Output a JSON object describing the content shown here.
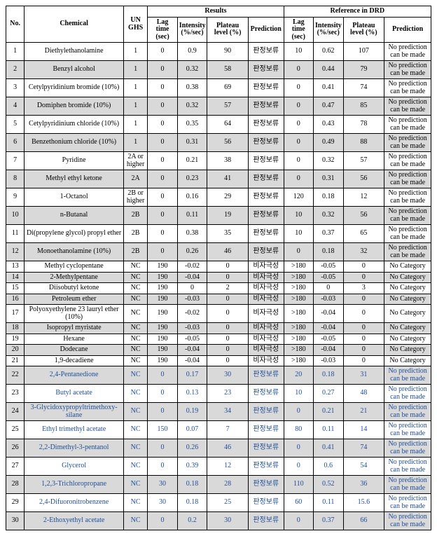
{
  "colors": {
    "shaded_row_bg": "#d9d9d9",
    "highlight_text": "#1f4e99",
    "border": "#000000",
    "bg": "#ffffff"
  },
  "typography": {
    "family": "Times New Roman",
    "base_size_pt": 10
  },
  "headers": {
    "no": "No.",
    "chemical": "Chemical",
    "ghs": "UN GHS",
    "results": "Results",
    "reference": "Reference in DRD",
    "lag": "Lag time (sec)",
    "intensity": "Intensity (%/sec)",
    "plateau": "Plateau level (%)",
    "prediction": "Prediction"
  },
  "rows": [
    {
      "no": 1,
      "chem": "Diethylethanolamine",
      "ghs": "1",
      "r": {
        "lag": "0",
        "int": "0.9",
        "plat": "90",
        "pred": "판정보류"
      },
      "d": {
        "lag": "10",
        "int": "0.62",
        "plat": "107",
        "pred": "No prediction can be made"
      },
      "shade": false,
      "blue": false
    },
    {
      "no": 2,
      "chem": "Benzyl alcohol",
      "ghs": "1",
      "r": {
        "lag": "0",
        "int": "0.32",
        "plat": "58",
        "pred": "판정보류"
      },
      "d": {
        "lag": "0",
        "int": "0.44",
        "plat": "79",
        "pred": "No prediction can be made"
      },
      "shade": true,
      "blue": false
    },
    {
      "no": 3,
      "chem": "Cetylpyridinium bromide (10%)",
      "ghs": "1",
      "r": {
        "lag": "0",
        "int": "0.38",
        "plat": "69",
        "pred": "판정보류"
      },
      "d": {
        "lag": "0",
        "int": "0.41",
        "plat": "74",
        "pred": "No prediction can be made"
      },
      "shade": false,
      "blue": false
    },
    {
      "no": 4,
      "chem": "Domiphen bromide (10%)",
      "ghs": "1",
      "r": {
        "lag": "0",
        "int": "0.32",
        "plat": "57",
        "pred": "판정보류"
      },
      "d": {
        "lag": "0",
        "int": "0.47",
        "plat": "85",
        "pred": "No prediction can be made"
      },
      "shade": true,
      "blue": false
    },
    {
      "no": 5,
      "chem": "Cetylpyridinium chloride (10%)",
      "ghs": "1",
      "r": {
        "lag": "0",
        "int": "0.35",
        "plat": "64",
        "pred": "판정보류"
      },
      "d": {
        "lag": "0",
        "int": "0.43",
        "plat": "78",
        "pred": "No prediction can be made"
      },
      "shade": false,
      "blue": false
    },
    {
      "no": 6,
      "chem": "Benzethonium chloride (10%)",
      "ghs": "1",
      "r": {
        "lag": "0",
        "int": "0.31",
        "plat": "56",
        "pred": "판정보류"
      },
      "d": {
        "lag": "0",
        "int": "0.49",
        "plat": "88",
        "pred": "No prediction can be made"
      },
      "shade": true,
      "blue": false
    },
    {
      "no": 7,
      "chem": "Pyridine",
      "ghs": "2A or higher",
      "r": {
        "lag": "0",
        "int": "0.21",
        "plat": "38",
        "pred": "판정보류"
      },
      "d": {
        "lag": "0",
        "int": "0.32",
        "plat": "57",
        "pred": "No prediction can be made"
      },
      "shade": false,
      "blue": false
    },
    {
      "no": 8,
      "chem": "Methyl ethyl ketone",
      "ghs": "2A",
      "r": {
        "lag": "0",
        "int": "0.23",
        "plat": "41",
        "pred": "판정보류"
      },
      "d": {
        "lag": "0",
        "int": "0.31",
        "plat": "56",
        "pred": "No prediction can be made"
      },
      "shade": true,
      "blue": false
    },
    {
      "no": 9,
      "chem": "1-Octanol",
      "ghs": "2B or higher",
      "r": {
        "lag": "0",
        "int": "0.16",
        "plat": "29",
        "pred": "판정보류"
      },
      "d": {
        "lag": "120",
        "int": "0.18",
        "plat": "12",
        "pred": "No prediction can be made"
      },
      "shade": false,
      "blue": false
    },
    {
      "no": 10,
      "chem": "n-Butanal",
      "ghs": "2B",
      "r": {
        "lag": "0",
        "int": "0.11",
        "plat": "19",
        "pred": "판정보류"
      },
      "d": {
        "lag": "10",
        "int": "0.32",
        "plat": "56",
        "pred": "No prediction can be made"
      },
      "shade": true,
      "blue": false
    },
    {
      "no": 11,
      "chem": "Di(propylene glycol) propyl ether",
      "ghs": "2B",
      "r": {
        "lag": "0",
        "int": "0.38",
        "plat": "35",
        "pred": "판정보류"
      },
      "d": {
        "lag": "10",
        "int": "0.37",
        "plat": "65",
        "pred": "No prediction can be made"
      },
      "shade": false,
      "blue": false
    },
    {
      "no": 12,
      "chem": "Monoethanolamine (10%)",
      "ghs": "2B",
      "r": {
        "lag": "0",
        "int": "0.26",
        "plat": "46",
        "pred": "판정보류"
      },
      "d": {
        "lag": "0",
        "int": "0.18",
        "plat": "32",
        "pred": "No prediction can be made"
      },
      "shade": true,
      "blue": false
    },
    {
      "no": 13,
      "chem": "Methyl cyclopentane",
      "ghs": "NC",
      "r": {
        "lag": "190",
        "int": "-0.02",
        "plat": "0",
        "pred": "비자극성"
      },
      "d": {
        "lag": ">180",
        "int": "-0.05",
        "plat": "0",
        "pred": "No Category"
      },
      "shade": false,
      "blue": false
    },
    {
      "no": 14,
      "chem": "2-Methylpentane",
      "ghs": "NC",
      "r": {
        "lag": "190",
        "int": "-0.04",
        "plat": "0",
        "pred": "비자극성"
      },
      "d": {
        "lag": ">180",
        "int": "-0.05",
        "plat": "0",
        "pred": "No Category"
      },
      "shade": true,
      "blue": false
    },
    {
      "no": 15,
      "chem": "Diisobutyl ketone",
      "ghs": "NC",
      "r": {
        "lag": "190",
        "int": "0",
        "plat": "2",
        "pred": "비자극성"
      },
      "d": {
        "lag": ">180",
        "int": "0",
        "plat": "3",
        "pred": "No Category"
      },
      "shade": false,
      "blue": false
    },
    {
      "no": 16,
      "chem": "Petroleum ether",
      "ghs": "NC",
      "r": {
        "lag": "190",
        "int": "-0.03",
        "plat": "0",
        "pred": "비자극성"
      },
      "d": {
        "lag": ">180",
        "int": "-0.03",
        "plat": "0",
        "pred": "No Category"
      },
      "shade": true,
      "blue": false
    },
    {
      "no": 17,
      "chem": "Polyoxyethylene 23 lauryl ether (10%)",
      "ghs": "NC",
      "r": {
        "lag": "190",
        "int": "-0.02",
        "plat": "0",
        "pred": "비자극성"
      },
      "d": {
        "lag": ">180",
        "int": "-0.04",
        "plat": "0",
        "pred": "No Category"
      },
      "shade": false,
      "blue": false
    },
    {
      "no": 18,
      "chem": "Isopropyl myristate",
      "ghs": "NC",
      "r": {
        "lag": "190",
        "int": "-0.03",
        "plat": "0",
        "pred": "비자극성"
      },
      "d": {
        "lag": ">180",
        "int": "-0.04",
        "plat": "0",
        "pred": "No Category"
      },
      "shade": true,
      "blue": false
    },
    {
      "no": 19,
      "chem": "Hexane",
      "ghs": "NC",
      "r": {
        "lag": "190",
        "int": "-0.05",
        "plat": "0",
        "pred": "비자극성"
      },
      "d": {
        "lag": ">180",
        "int": "-0.05",
        "plat": "0",
        "pred": "No Category"
      },
      "shade": false,
      "blue": false
    },
    {
      "no": 20,
      "chem": "Dodecane",
      "ghs": "NC",
      "r": {
        "lag": "190",
        "int": "-0.04",
        "plat": "0",
        "pred": "비자극성"
      },
      "d": {
        "lag": ">180",
        "int": "-0.04",
        "plat": "0",
        "pred": "No Category"
      },
      "shade": true,
      "blue": false
    },
    {
      "no": 21,
      "chem": "1,9-decadiene",
      "ghs": "NC",
      "r": {
        "lag": "190",
        "int": "-0.04",
        "plat": "0",
        "pred": "비자극성"
      },
      "d": {
        "lag": ">180",
        "int": "-0.03",
        "plat": "0",
        "pred": "No Category"
      },
      "shade": false,
      "blue": false
    },
    {
      "no": 22,
      "chem": "2,4-Pentanedione",
      "ghs": "NC",
      "r": {
        "lag": "0",
        "int": "0.17",
        "plat": "30",
        "pred": "판정보류"
      },
      "d": {
        "lag": "20",
        "int": "0.18",
        "plat": "31",
        "pred": "No prediction can be made"
      },
      "shade": true,
      "blue": true
    },
    {
      "no": 23,
      "chem": "Butyl acetate",
      "ghs": "NC",
      "r": {
        "lag": "0",
        "int": "0.13",
        "plat": "23",
        "pred": "판정보류"
      },
      "d": {
        "lag": "10",
        "int": "0.27",
        "plat": "48",
        "pred": "No prediction can be made"
      },
      "shade": false,
      "blue": true
    },
    {
      "no": 24,
      "chem": "3-Glycidoxypropyltrimethoxy-silane",
      "ghs": "NC",
      "r": {
        "lag": "0",
        "int": "0.19",
        "plat": "34",
        "pred": "판정보류"
      },
      "d": {
        "lag": "0",
        "int": "0.21",
        "plat": "21",
        "pred": "No prediction can be made"
      },
      "shade": true,
      "blue": true
    },
    {
      "no": 25,
      "chem": "Ethyl trimethyl acetate",
      "ghs": "NC",
      "r": {
        "lag": "150",
        "int": "0.07",
        "plat": "7",
        "pred": "판정보류"
      },
      "d": {
        "lag": "80",
        "int": "0.11",
        "plat": "14",
        "pred": "No prediction can be made"
      },
      "shade": false,
      "blue": true
    },
    {
      "no": 26,
      "chem": "2,2-Dimethyl-3-pentanol",
      "ghs": "NC",
      "r": {
        "lag": "0",
        "int": "0.26",
        "plat": "46",
        "pred": "판정보류"
      },
      "d": {
        "lag": "0",
        "int": "0.41",
        "plat": "74",
        "pred": "No prediction can be made"
      },
      "shade": true,
      "blue": true
    },
    {
      "no": 27,
      "chem": "Glycerol",
      "ghs": "NC",
      "r": {
        "lag": "0",
        "int": "0.39",
        "plat": "12",
        "pred": "판정보류"
      },
      "d": {
        "lag": "0",
        "int": "0.6",
        "plat": "54",
        "pred": "No prediction can be made"
      },
      "shade": false,
      "blue": true
    },
    {
      "no": 28,
      "chem": "1,2,3-Trichloropropane",
      "ghs": "NC",
      "r": {
        "lag": "30",
        "int": "0.18",
        "plat": "28",
        "pred": "판정보류"
      },
      "d": {
        "lag": "110",
        "int": "0.52",
        "plat": "36",
        "pred": "No prediction can be made"
      },
      "shade": true,
      "blue": true
    },
    {
      "no": 29,
      "chem": "2,4-Difuoronitrobenzene",
      "ghs": "NC",
      "r": {
        "lag": "30",
        "int": "0.18",
        "plat": "25",
        "pred": "판정보류"
      },
      "d": {
        "lag": "60",
        "int": "0.11",
        "plat": "15.6",
        "pred": "No prediction can be made"
      },
      "shade": false,
      "blue": true
    },
    {
      "no": 30,
      "chem": "2-Ethoxyethyl acetate",
      "ghs": "NC",
      "r": {
        "lag": "0",
        "int": "0.2",
        "plat": "30",
        "pred": "판정보류"
      },
      "d": {
        "lag": "0",
        "int": "0.37",
        "plat": "66",
        "pred": "No prediction can be made"
      },
      "shade": true,
      "blue": true
    }
  ]
}
